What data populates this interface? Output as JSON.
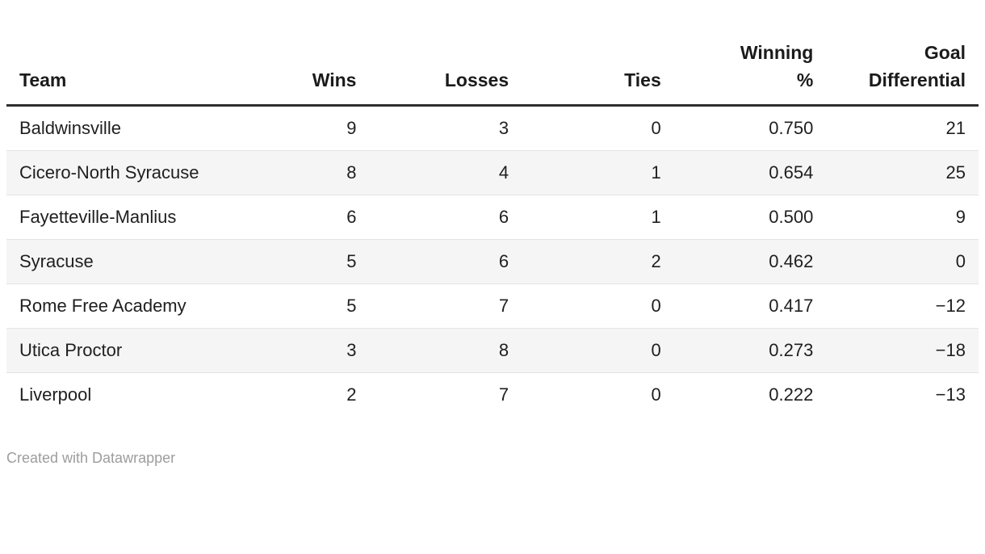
{
  "table": {
    "columns": [
      {
        "label": "Team"
      },
      {
        "label": "Wins"
      },
      {
        "label": "Losses"
      },
      {
        "label": "Ties"
      },
      {
        "label": "Winning %"
      },
      {
        "label": "Goal Differential"
      }
    ],
    "rows": [
      {
        "team": "Baldwinsville",
        "wins": "9",
        "losses": "3",
        "ties": "0",
        "winning_pct": "0.750",
        "goal_diff": "21"
      },
      {
        "team": "Cicero-North Syracuse",
        "wins": "8",
        "losses": "4",
        "ties": "1",
        "winning_pct": "0.654",
        "goal_diff": "25"
      },
      {
        "team": "Fayetteville-Manlius",
        "wins": "6",
        "losses": "6",
        "ties": "1",
        "winning_pct": "0.500",
        "goal_diff": "9"
      },
      {
        "team": "Syracuse",
        "wins": "5",
        "losses": "6",
        "ties": "2",
        "winning_pct": "0.462",
        "goal_diff": "0"
      },
      {
        "team": "Rome Free Academy",
        "wins": "5",
        "losses": "7",
        "ties": "0",
        "winning_pct": "0.417",
        "goal_diff": "−12"
      },
      {
        "team": "Utica Proctor",
        "wins": "3",
        "losses": "8",
        "ties": "0",
        "winning_pct": "0.273",
        "goal_diff": "−18"
      },
      {
        "team": "Liverpool",
        "wins": "2",
        "losses": "7",
        "ties": "0",
        "winning_pct": "0.222",
        "goal_diff": "−13"
      }
    ]
  },
  "footer": {
    "attribution": "Created with Datawrapper"
  },
  "chart_data": {
    "type": "table",
    "title": "",
    "columns": [
      "Team",
      "Wins",
      "Losses",
      "Ties",
      "Winning %",
      "Goal Differential"
    ],
    "rows": [
      [
        "Baldwinsville",
        9,
        3,
        0,
        0.75,
        21
      ],
      [
        "Cicero-North Syracuse",
        8,
        4,
        1,
        0.654,
        25
      ],
      [
        "Fayetteville-Manlius",
        6,
        6,
        1,
        0.5,
        9
      ],
      [
        "Syracuse",
        5,
        6,
        2,
        0.462,
        0
      ],
      [
        "Rome Free Academy",
        5,
        7,
        0,
        0.417,
        -12
      ],
      [
        "Utica Proctor",
        3,
        8,
        0,
        0.273,
        -18
      ],
      [
        "Liverpool",
        2,
        7,
        0,
        0.222,
        -13
      ]
    ],
    "layout_hints": {
      "zebra_striping": true,
      "stripe_color": "#f5f5f5",
      "header_rule_color": "#2e2e2e",
      "row_rule_color": "#e4e4e4",
      "numeric_columns_right_aligned": true
    },
    "attribution": "Created with Datawrapper"
  }
}
